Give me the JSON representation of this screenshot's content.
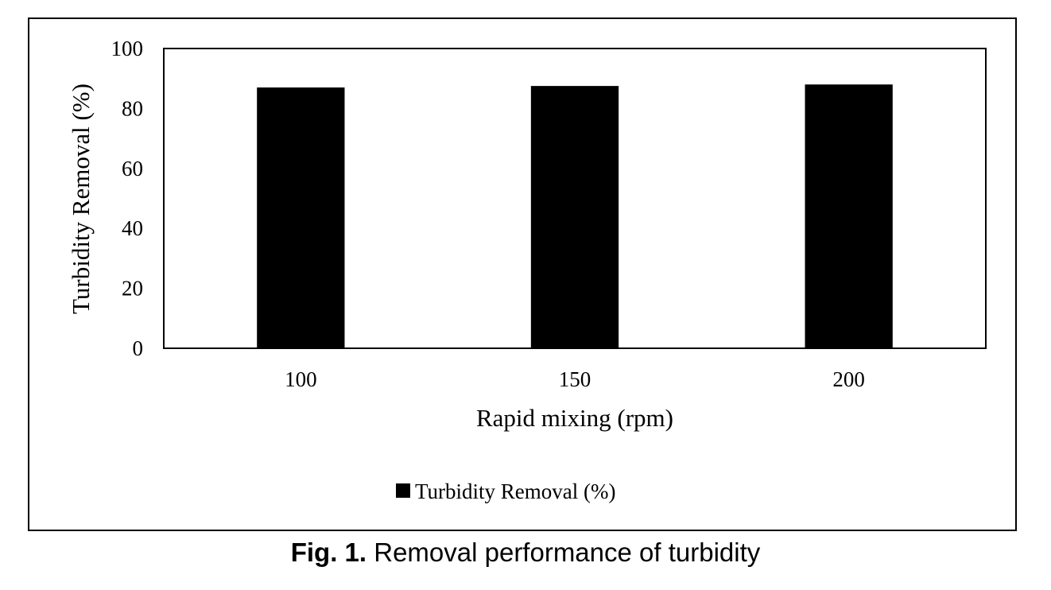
{
  "caption": {
    "label": "Fig. 1.",
    "text": " Removal performance of turbidity"
  },
  "chart_data": {
    "type": "bar",
    "categories": [
      "100",
      "150",
      "200"
    ],
    "series": [
      {
        "name": "Turbidity Removal (%)",
        "values": [
          87,
          87.5,
          88
        ]
      }
    ],
    "title": "",
    "xlabel": "Rapid mixing (rpm)",
    "ylabel": "Turbidity Removal (%)",
    "ylim": [
      0,
      100
    ],
    "yticks": [
      0,
      20,
      40,
      60,
      80,
      100
    ],
    "grid": false,
    "legend_position": "bottom",
    "bar_color": "#000000"
  }
}
